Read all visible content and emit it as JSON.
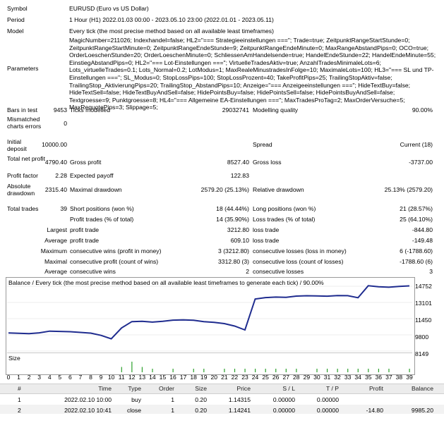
{
  "summary": {
    "symbol_label": "Symbol",
    "symbol_value": "EURUSD (Euro vs US Dollar)",
    "period_label": "Period",
    "period_value": "1 Hour (H1) 2022.01.03 00:00 - 2023.05.10 23:00 (2022.01.01 - 2023.05.11)",
    "model_label": "Model",
    "model_value": "Every tick (the most precise method based on all available least timeframes)",
    "parameters_label": "Parameters",
    "parameters_value": "MagicNumber=211026; Indexhandel=false; HL2=\"=== Strategieeinstellungen ===\"; Trade=true; ZeitpunktRangeStartStunde=0; ZeitpunktRangeStartMinute=0; ZeitpunktRangeEndeStunde=9; ZeitpunktRangeEndeMinute=0; MaxRangeAbstandPips=0; OCO=true; OrderLoeschenStunde=20; OrderLoeschenMinute=0; SchliessenAmHandelsende=true; HandelEndeStunde=22; HandelEndeMinute=55; EinstiegAbstandPips=0; HL2=\"=== Lot-Einstellungen ===\"; VirtuelleTradesAktiv=true; AnzahlTradesMinimaleLots=6; Lots_virtuelleTrades=0.1; Lots_Normal=0.2; LotModus=1; MaxRealeMinustradesInFolge=10; MaximaleLots=100; HL3=\"=== SL und TP-Einstellungen ===\"; SL_Modus=0; StopLossPips=100; StopLossProzent=40; TakeProfitPips=25; TrailingStopAktiv=false; TrailingStop_AktivierungPips=20; TrailingStop_AbstandPips=10; Anzeige=\"=== Anzeigeeinstellungen ===\"; HideTextBuy=false; HideTextSell=false; HideTextBuyAndSell=false; HidePointsBuy=false; HidePointsSell=false; HidePointsBuyAndSell=false; Textgroesse=9; Punktgroesse=8; HL4=\"=== Allgemeine EA-Einstellungen ===\"; MaxTradesProTag=2; MaxOrderVersuche=5; MaxRequotePips=3; Slippage=5;",
    "bars_label": "Bars in test",
    "bars_value": "9453",
    "ticks_label": "Ticks modelled",
    "ticks_value": "29032741",
    "quality_label": "Modelling quality",
    "quality_value": "90.00%",
    "mismatch_label": "Mismatched charts errors",
    "mismatch_value": "0",
    "deposit_label": "Initial deposit",
    "deposit_value": "10000.00",
    "spread_label": "Spread",
    "spread_value": "Current (18)",
    "netprofit_label": "Total net profit",
    "netprofit_value": "4790.40",
    "grossprofit_label": "Gross profit",
    "grossprofit_value": "8527.40",
    "grossloss_label": "Gross loss",
    "grossloss_value": "-3737.00",
    "pf_label": "Profit factor",
    "pf_value": "2.28",
    "payoff_label": "Expected payoff",
    "payoff_value": "122.83",
    "absdd_label": "Absolute drawdown",
    "absdd_value": "2315.40",
    "maxdd_label": "Maximal drawdown",
    "maxdd_value": "2579.20 (25.13%)",
    "reldd_label": "Relative drawdown",
    "reldd_value": "25.13% (2579.20)",
    "trades_label": "Total trades",
    "trades_value": "39",
    "short_label": "Short positions (won %)",
    "short_value": "18 (44.44%)",
    "long_label": "Long positions (won %)",
    "long_value": "21 (28.57%)",
    "ptrades_label": "Profit trades (% of total)",
    "ptrades_value": "14 (35.90%)",
    "ltrades_label": "Loss trades (% of total)",
    "ltrades_value": "25 (64.10%)",
    "largest_label": "Largest",
    "largest_profit_label": "profit trade",
    "largest_profit_value": "3212.80",
    "largest_loss_label": "loss trade",
    "largest_loss_value": "-844.80",
    "average_label": "Average",
    "avg_profit_label": "profit trade",
    "avg_profit_value": "609.10",
    "avg_loss_label": "loss trade",
    "avg_loss_value": "-149.48",
    "maximum_label": "Maximum",
    "max_wins_label": "consecutive wins (profit in money)",
    "max_wins_value": "3 (3212.80)",
    "max_losses_label": "consecutive losses (loss in money)",
    "max_losses_value": "6 (-1788.60)",
    "maximal_label": "Maximal",
    "maxl_profit_label": "consecutive profit (count of wins)",
    "maxl_profit_value": "3312.80 (3)",
    "maxl_loss_label": "consecutive loss (count of losses)",
    "maxl_loss_value": "-1788.60 (6)",
    "avg2_label": "Average",
    "avg_wins_label": "consecutive wins",
    "avg_wins_value": "2",
    "avg_losses_label": "consecutive losses",
    "avg_losses_value": "3"
  },
  "chart_data": {
    "type": "line",
    "title": "Balance / Every tick (the most precise method based on all available least timeframes to generate each tick) / 90.00%",
    "y_ticks": [
      "14752",
      "13101",
      "11450",
      "9800",
      "8149"
    ],
    "ylim": [
      8149,
      14752
    ],
    "volume_label": "Size",
    "x_ticks": [
      "0",
      "1",
      "2",
      "3",
      "4",
      "5",
      "6",
      "7",
      "8",
      "9",
      "10",
      "11",
      "12",
      "13",
      "14",
      "15",
      "16",
      "17",
      "18",
      "19",
      "20",
      "21",
      "22",
      "23",
      "24",
      "25",
      "26",
      "27",
      "28",
      "29",
      "30",
      "31",
      "32",
      "33",
      "34",
      "35",
      "36",
      "37",
      "38",
      "39"
    ],
    "series": [
      {
        "values": [
          10000,
          9960,
          9930,
          10010,
          10180,
          10150,
          10120,
          10050,
          9980,
          9750,
          9400,
          10500,
          11150,
          11180,
          11100,
          11180,
          11300,
          11320,
          11290,
          11150,
          11080,
          10950,
          10700,
          10300,
          13450,
          13600,
          13650,
          13620,
          13750,
          13780,
          13760,
          13740,
          13800,
          13790,
          13580,
          14800,
          14700,
          14650,
          14730,
          14790
        ],
        "color": "#1f2c8f"
      }
    ],
    "volume": [
      0,
      0,
      0,
      0,
      0,
      0,
      0,
      0,
      0,
      0,
      0,
      0.3,
      0.6,
      0.3,
      0.2,
      0,
      0.2,
      0,
      0.2,
      0.2,
      0,
      0.2,
      0.2,
      0.2,
      0.2,
      0.2,
      0.2,
      0.2,
      0.2,
      0,
      0.2,
      0.2,
      0.2,
      0.2,
      0.2,
      0.2,
      0.2,
      0.2,
      0,
      0.2
    ]
  },
  "orders_table": {
    "headers": [
      "#",
      "Time",
      "Type",
      "Order",
      "Size",
      "Price",
      "S / L",
      "T / P",
      "Profit",
      "Balance"
    ],
    "rows": [
      [
        "1",
        "2022.02.10 10:00",
        "buy",
        "1",
        "0.20",
        "1.14315",
        "0.00000",
        "0.00000",
        "",
        ""
      ],
      [
        "2",
        "2022.02.10 10:41",
        "close",
        "1",
        "0.20",
        "1.14241",
        "0.00000",
        "0.00000",
        "-14.80",
        "9985.20"
      ]
    ]
  }
}
